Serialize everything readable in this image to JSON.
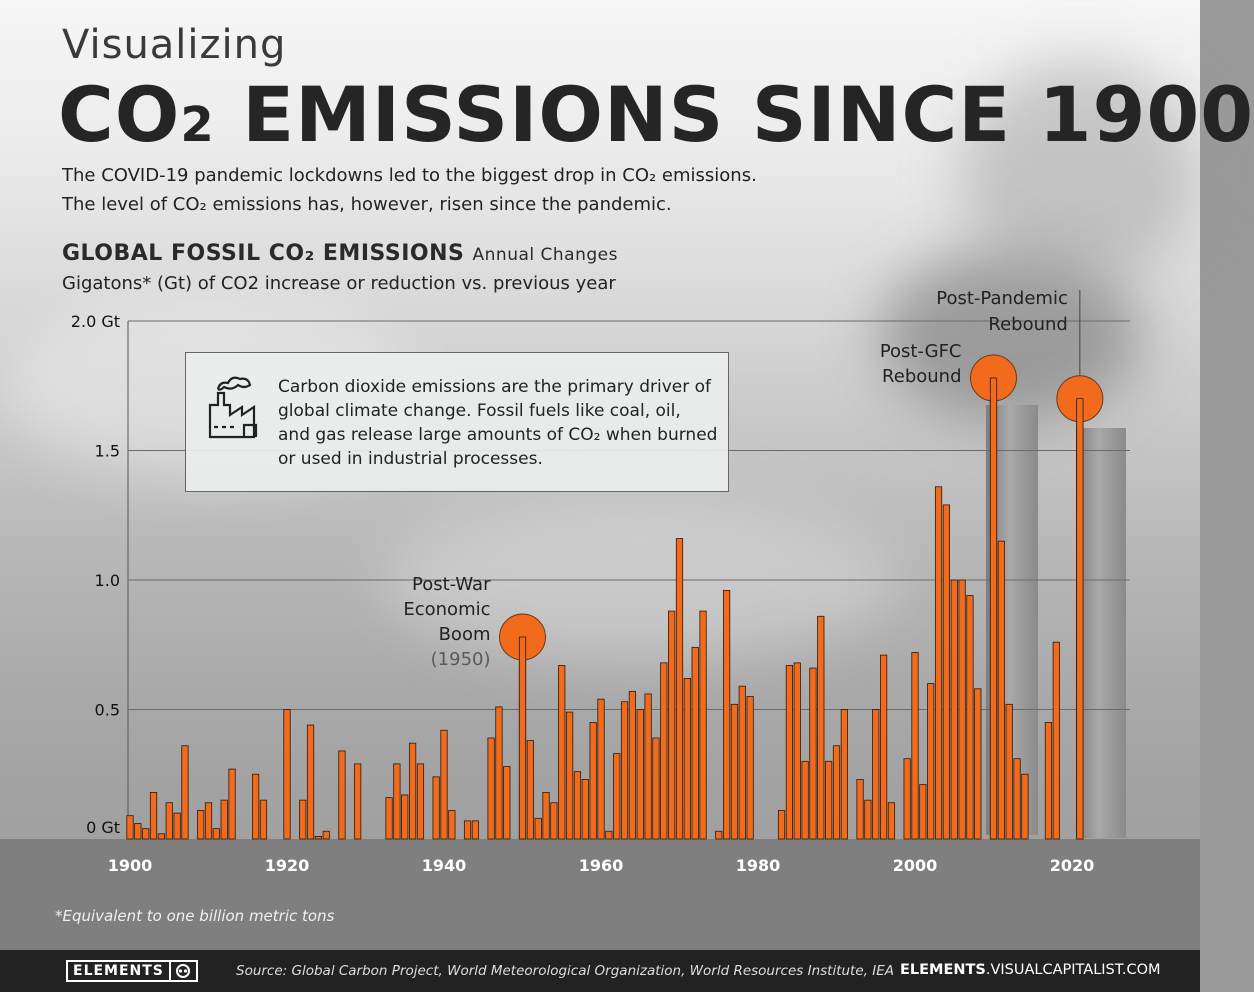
{
  "kicker": "Visualizing",
  "headline": {
    "pre": "CO",
    "sub": "2",
    "post": " EMISSIONS SINCE 1900"
  },
  "intro": [
    "The COVID-19 pandemic lockdowns led to the biggest drop in CO₂ emissions.",
    "The level of CO₂ emissions has, however, risen since the pandemic."
  ],
  "callout": {
    "icon": "factory-icon",
    "text": "Carbon dioxide emissions are the primary driver of global climate change. Fossil fuels like coal, oil, and gas release large amounts of CO₂ when burned or used in industrial processes."
  },
  "footnote": "*Equivalent to one billion metric tons",
  "footer": {
    "logo": "ELEMENTS",
    "source": "Source: Global Carbon Project, World Meteorological Organization, World Resources Institute, IEA",
    "site_bold": "ELEMENTS",
    "site_rest": ".VISUALCAPITALIST.COM"
  },
  "colors": {
    "bar": "#f26a1b",
    "bar_stroke": "#2a1a10",
    "highlight": "#f26a1b"
  },
  "chart_data": {
    "type": "bar",
    "title": "GLOBAL FOSSIL CO₂ EMISSIONS",
    "title_suffix": "Annual Changes",
    "subtitle": "Gigatons* (Gt) of CO2 increase or reduction vs. previous year",
    "ylabel": "",
    "xlabel": "",
    "ylim": [
      0,
      2.0
    ],
    "xlim": [
      1900,
      2022
    ],
    "yticks": [
      {
        "value": 2.0,
        "label": "2.0 Gt"
      },
      {
        "value": 1.5,
        "label": "1.5"
      },
      {
        "value": 1.0,
        "label": "1.0"
      },
      {
        "value": 0.5,
        "label": "0.5"
      },
      {
        "value": 0.0,
        "label": "0 Gt"
      }
    ],
    "xticks": [
      1900,
      1920,
      1940,
      1960,
      1980,
      2000,
      2020
    ],
    "grid": true,
    "bars": [
      {
        "year": 1900,
        "value": 0.09
      },
      {
        "year": 1901,
        "value": 0.06
      },
      {
        "year": 1902,
        "value": 0.04
      },
      {
        "year": 1903,
        "value": 0.18
      },
      {
        "year": 1904,
        "value": 0.02
      },
      {
        "year": 1905,
        "value": 0.14
      },
      {
        "year": 1906,
        "value": 0.1
      },
      {
        "year": 1907,
        "value": 0.36
      },
      {
        "year": 1909,
        "value": 0.11
      },
      {
        "year": 1910,
        "value": 0.14
      },
      {
        "year": 1911,
        "value": 0.04
      },
      {
        "year": 1912,
        "value": 0.15
      },
      {
        "year": 1913,
        "value": 0.27
      },
      {
        "year": 1916,
        "value": 0.25
      },
      {
        "year": 1917,
        "value": 0.15
      },
      {
        "year": 1920,
        "value": 0.5
      },
      {
        "year": 1922,
        "value": 0.15
      },
      {
        "year": 1923,
        "value": 0.44
      },
      {
        "year": 1924,
        "value": 0.01
      },
      {
        "year": 1925,
        "value": 0.03
      },
      {
        "year": 1927,
        "value": 0.34
      },
      {
        "year": 1929,
        "value": 0.29
      },
      {
        "year": 1933,
        "value": 0.16
      },
      {
        "year": 1934,
        "value": 0.29
      },
      {
        "year": 1935,
        "value": 0.17
      },
      {
        "year": 1936,
        "value": 0.37
      },
      {
        "year": 1937,
        "value": 0.29
      },
      {
        "year": 1939,
        "value": 0.24
      },
      {
        "year": 1940,
        "value": 0.42
      },
      {
        "year": 1941,
        "value": 0.11
      },
      {
        "year": 1943,
        "value": 0.07
      },
      {
        "year": 1944,
        "value": 0.07
      },
      {
        "year": 1946,
        "value": 0.39
      },
      {
        "year": 1947,
        "value": 0.51
      },
      {
        "year": 1948,
        "value": 0.28
      },
      {
        "year": 1950,
        "value": 0.78
      },
      {
        "year": 1951,
        "value": 0.38
      },
      {
        "year": 1952,
        "value": 0.08
      },
      {
        "year": 1953,
        "value": 0.18
      },
      {
        "year": 1954,
        "value": 0.14
      },
      {
        "year": 1955,
        "value": 0.67
      },
      {
        "year": 1956,
        "value": 0.49
      },
      {
        "year": 1957,
        "value": 0.26
      },
      {
        "year": 1958,
        "value": 0.23
      },
      {
        "year": 1959,
        "value": 0.45
      },
      {
        "year": 1960,
        "value": 0.54
      },
      {
        "year": 1961,
        "value": 0.03
      },
      {
        "year": 1962,
        "value": 0.33
      },
      {
        "year": 1963,
        "value": 0.53
      },
      {
        "year": 1964,
        "value": 0.57
      },
      {
        "year": 1965,
        "value": 0.5
      },
      {
        "year": 1966,
        "value": 0.56
      },
      {
        "year": 1967,
        "value": 0.39
      },
      {
        "year": 1968,
        "value": 0.68
      },
      {
        "year": 1969,
        "value": 0.88
      },
      {
        "year": 1970,
        "value": 1.16
      },
      {
        "year": 1971,
        "value": 0.62
      },
      {
        "year": 1972,
        "value": 0.74
      },
      {
        "year": 1973,
        "value": 0.88
      },
      {
        "year": 1975,
        "value": 0.03
      },
      {
        "year": 1976,
        "value": 0.96
      },
      {
        "year": 1977,
        "value": 0.52
      },
      {
        "year": 1978,
        "value": 0.59
      },
      {
        "year": 1979,
        "value": 0.55
      },
      {
        "year": 1983,
        "value": 0.11
      },
      {
        "year": 1984,
        "value": 0.67
      },
      {
        "year": 1985,
        "value": 0.68
      },
      {
        "year": 1986,
        "value": 0.3
      },
      {
        "year": 1987,
        "value": 0.66
      },
      {
        "year": 1988,
        "value": 0.86
      },
      {
        "year": 1989,
        "value": 0.3
      },
      {
        "year": 1990,
        "value": 0.36
      },
      {
        "year": 1991,
        "value": 0.5
      },
      {
        "year": 1993,
        "value": 0.23
      },
      {
        "year": 1994,
        "value": 0.15
      },
      {
        "year": 1995,
        "value": 0.5
      },
      {
        "year": 1996,
        "value": 0.71
      },
      {
        "year": 1997,
        "value": 0.14
      },
      {
        "year": 1999,
        "value": 0.31
      },
      {
        "year": 2000,
        "value": 0.72
      },
      {
        "year": 2001,
        "value": 0.21
      },
      {
        "year": 2002,
        "value": 0.6
      },
      {
        "year": 2003,
        "value": 1.36
      },
      {
        "year": 2004,
        "value": 1.29
      },
      {
        "year": 2005,
        "value": 1.0
      },
      {
        "year": 2006,
        "value": 1.0
      },
      {
        "year": 2007,
        "value": 0.94
      },
      {
        "year": 2008,
        "value": 0.58
      },
      {
        "year": 2010,
        "value": 1.78
      },
      {
        "year": 2011,
        "value": 1.15
      },
      {
        "year": 2012,
        "value": 0.52
      },
      {
        "year": 2013,
        "value": 0.31
      },
      {
        "year": 2014,
        "value": 0.25
      },
      {
        "year": 2017,
        "value": 0.45
      },
      {
        "year": 2018,
        "value": 0.76
      },
      {
        "year": 2021,
        "value": 1.7
      }
    ],
    "annotations": [
      {
        "year": 1950,
        "value": 0.78,
        "lines": [
          "Post-War",
          "Economic",
          "Boom"
        ],
        "note": "(1950)",
        "side": "left"
      },
      {
        "year": 2010,
        "value": 1.78,
        "lines": [
          "Post-GFC",
          "Rebound"
        ],
        "note": "",
        "side": "left"
      },
      {
        "year": 2021,
        "value": 1.7,
        "lines": [
          "Post-Pandemic",
          "Rebound"
        ],
        "note": "",
        "side": "above"
      }
    ]
  }
}
